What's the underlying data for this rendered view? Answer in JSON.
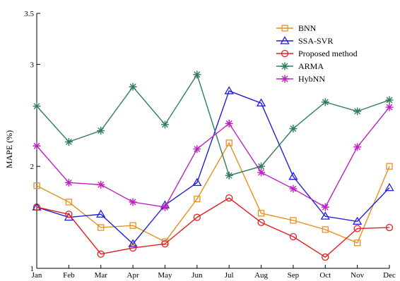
{
  "chart_data": {
    "type": "line",
    "title": "",
    "xlabel": "",
    "ylabel": "MAPE (%)",
    "ylim": [
      1,
      3.5
    ],
    "yticks": [
      "1",
      "2",
      "3",
      "3.5"
    ],
    "categories": [
      "Jan",
      "Feb",
      "Mar",
      "Apr",
      "May",
      "Jun",
      "Jul",
      "Aug",
      "Sep",
      "Oct",
      "Nov",
      "Dec"
    ],
    "grid": false,
    "legend_position": "top-right",
    "series": [
      {
        "name": "BNN",
        "color": "#e8901e",
        "marker": "square",
        "values": [
          1.81,
          1.65,
          1.4,
          1.42,
          1.26,
          1.68,
          2.23,
          1.54,
          1.47,
          1.38,
          1.25,
          2.0
        ]
      },
      {
        "name": "SSA-SVR",
        "color": "#1f1fd8",
        "marker": "triangle",
        "values": [
          1.6,
          1.5,
          1.53,
          1.24,
          1.62,
          1.84,
          2.74,
          2.62,
          1.9,
          1.51,
          1.46,
          1.79
        ]
      },
      {
        "name": "Proposed method",
        "color": "#e02020",
        "marker": "circle",
        "values": [
          1.6,
          1.53,
          1.14,
          1.2,
          1.24,
          1.5,
          1.69,
          1.45,
          1.31,
          1.11,
          1.39,
          1.4
        ]
      },
      {
        "name": "ARMA",
        "color": "#2e7d5b",
        "marker": "star",
        "values": [
          2.59,
          2.24,
          2.35,
          2.78,
          2.41,
          2.9,
          1.91,
          2.0,
          2.37,
          2.63,
          2.54,
          2.65
        ]
      },
      {
        "name": "HybNN",
        "color": "#c020c0",
        "marker": "star",
        "values": [
          2.2,
          1.84,
          1.82,
          1.65,
          1.6,
          2.17,
          2.42,
          1.94,
          1.78,
          1.6,
          2.19,
          2.58
        ]
      }
    ]
  }
}
